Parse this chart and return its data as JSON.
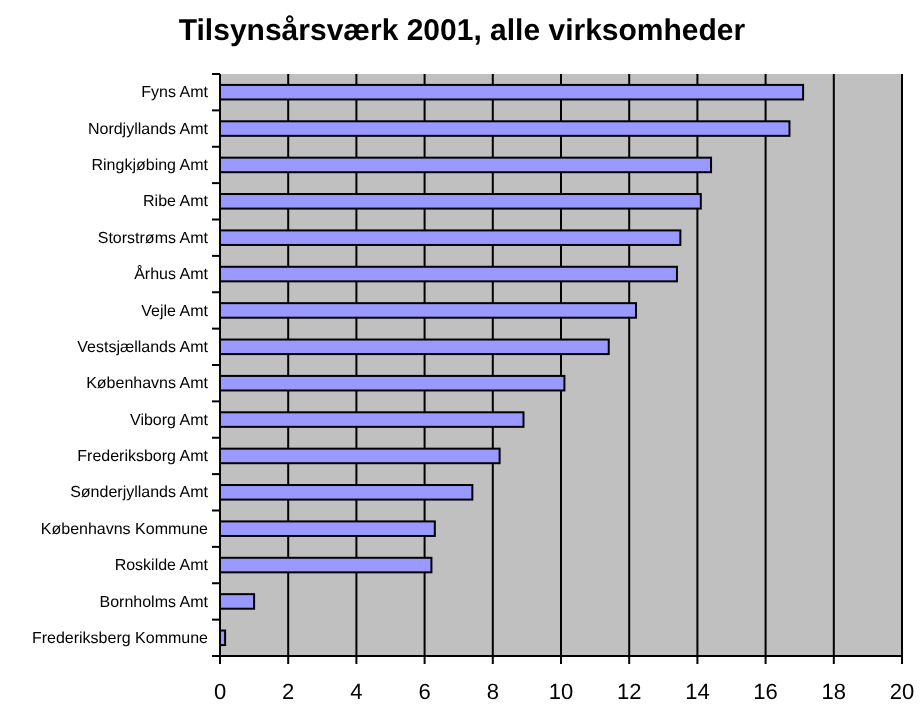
{
  "chart_data": {
    "type": "bar",
    "orientation": "horizontal",
    "title": "Tilsynsårsværk 2001, alle virksomheder",
    "categories": [
      "Fyns Amt",
      "Nordjyllands Amt",
      "Ringkjøbing Amt",
      "Ribe Amt",
      "Storstrøms Amt",
      "Århus Amt",
      "Vejle Amt",
      "Vestsjællands Amt",
      "Københavns Amt",
      "Viborg Amt",
      "Frederiksborg Amt",
      "Sønderjyllands Amt",
      "Københavns Kommune",
      "Roskilde Amt",
      "Bornholms Amt",
      "Frederiksberg Kommune"
    ],
    "values": [
      17.1,
      16.7,
      14.4,
      14.1,
      13.5,
      13.4,
      12.2,
      11.4,
      10.1,
      8.9,
      8.2,
      7.4,
      6.3,
      6.2,
      1.0,
      0.15
    ],
    "color": "#9999ff",
    "xlim": [
      0,
      20
    ],
    "xticks": [
      0,
      2,
      4,
      6,
      8,
      10,
      12,
      14,
      16,
      18,
      20
    ],
    "grid": "x"
  }
}
